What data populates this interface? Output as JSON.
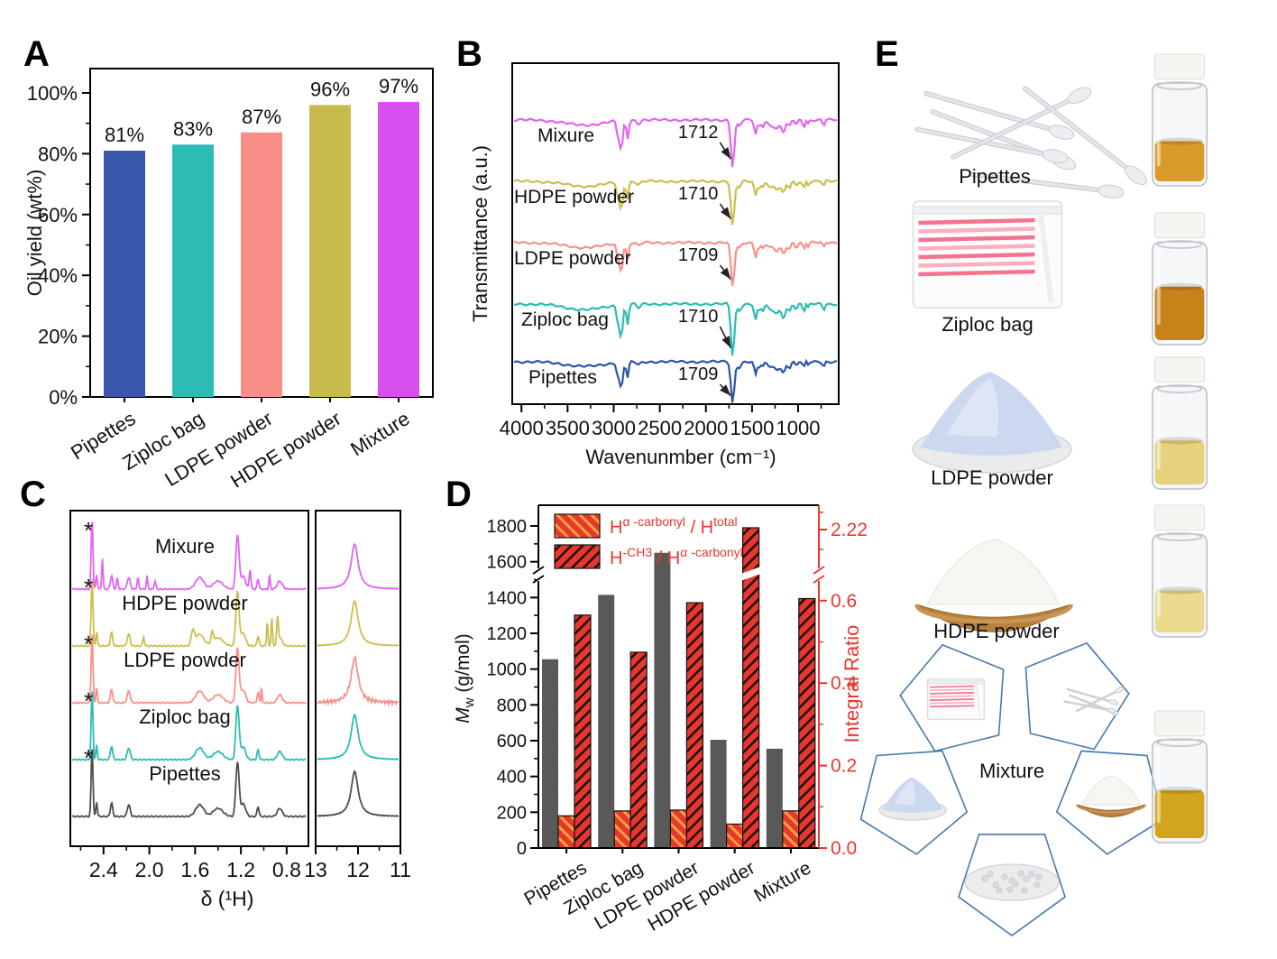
{
  "panels": {
    "a": "A",
    "b": "B",
    "c": "C",
    "d": "D",
    "e": "E"
  },
  "chart_data": [
    {
      "id": "A",
      "type": "bar",
      "ylabel": "Oil yield (wt%)",
      "categories": [
        "Pipettes",
        "Ziploc bag",
        "LDPE powder",
        "HDPE powder",
        "Mixture"
      ],
      "values": [
        81,
        83,
        87,
        96,
        97
      ],
      "value_labels": [
        "81%",
        "83%",
        "87%",
        "96%",
        "97%"
      ],
      "bar_colors": [
        "#3a57ae",
        "#2cbcb4",
        "#f98f88",
        "#c9bb4b",
        "#d84ff0"
      ],
      "yticks": [
        0,
        20,
        40,
        60,
        80,
        100
      ],
      "ytick_labels": [
        "0%",
        "20%",
        "40%",
        "60%",
        "80%",
        "100%"
      ],
      "ylim": [
        0,
        108
      ],
      "grid": false
    },
    {
      "id": "B",
      "type": "line-spectra",
      "xlabel": "Wavenunmber (cm⁻¹)",
      "ylabel": "Transmittance (a.u.)",
      "xticks": [
        4000,
        3500,
        3000,
        2500,
        2000,
        1500,
        1000
      ],
      "xlim": [
        4100,
        560
      ],
      "x_axis_reversed": true,
      "annotation_peak_wavenumber": 1710,
      "series": [
        {
          "name": "Mixure",
          "color": "#e164f2",
          "annotation": "1712",
          "depth_scale": 0.95
        },
        {
          "name": "HDPE powder",
          "color": "#ccbe4e",
          "annotation": "1710",
          "depth_scale": 0.92
        },
        {
          "name": "LDPE powder",
          "color": "#f9908a",
          "annotation": "1709",
          "depth_scale": 0.9
        },
        {
          "name": "Ziploc bag",
          "color": "#2cbcb4",
          "annotation": "1710",
          "depth_scale": 1.05
        },
        {
          "name": "Pipettes",
          "color": "#2c55a8",
          "annotation": "1709",
          "depth_scale": 0.85
        }
      ],
      "shared_absorption_bands": [
        [
          3320,
          6,
          290
        ],
        [
          2955,
          16,
          20
        ],
        [
          2918,
          34,
          24
        ],
        [
          2850,
          21,
          18
        ],
        [
          2730,
          4,
          28
        ],
        [
          1710,
          55,
          26
        ],
        [
          1640,
          7,
          30
        ],
        [
          1460,
          17,
          22
        ],
        [
          1412,
          9,
          14
        ],
        [
          1376,
          8,
          12
        ],
        [
          1300,
          6,
          45
        ],
        [
          1230,
          10,
          38
        ],
        [
          1158,
          14,
          30
        ],
        [
          1096,
          8,
          20
        ],
        [
          1020,
          6,
          18
        ],
        [
          938,
          8,
          16
        ],
        [
          888,
          5,
          12
        ],
        [
          724,
          7,
          14
        ]
      ]
    },
    {
      "id": "C",
      "type": "nmr-spectra",
      "xlabel": "δ (¹H)",
      "solvent_marker": "*",
      "left_xticks": [
        "2.4",
        "2.0",
        "1.6",
        "1.2",
        "0.8"
      ],
      "left_xlim": [
        2.69,
        0.61
      ],
      "right_xticks": [
        "13",
        "12",
        "11"
      ],
      "right_xlim": [
        13,
        11
      ],
      "series": [
        {
          "name": "Mixure",
          "color": "#e164f2",
          "right_noise": 0.5,
          "extra_peaks": [
            [
              2.41,
              34,
              0.008
            ],
            [
              2.28,
              12,
              0.01
            ],
            [
              2.1,
              13,
              0.009
            ],
            [
              2.02,
              15,
              0.008
            ],
            [
              1.95,
              9,
              0.01
            ],
            [
              1.12,
              22,
              0.01
            ],
            [
              0.95,
              16,
              0.008
            ]
          ]
        },
        {
          "name": "HDPE powder",
          "color": "#ccbe4e",
          "right_noise": 0.5,
          "extra_peaks": [
            [
              2.05,
              10,
              0.01
            ],
            [
              1.62,
              16,
              0.02
            ],
            [
              1.45,
              12,
              0.015
            ],
            [
              0.97,
              28,
              0.008
            ],
            [
              0.93,
              32,
              0.008
            ],
            [
              0.88,
              28,
              0.01
            ]
          ]
        },
        {
          "name": "LDPE powder",
          "color": "#f9908a",
          "right_noise": 2.4,
          "extra_peaks": [
            [
              1.02,
              20,
              0.006
            ]
          ]
        },
        {
          "name": "Ziploc bag",
          "color": "#2cbcb4",
          "right_noise": 0.5,
          "extra_peaks": []
        },
        {
          "name": "Pipettes",
          "color": "#4d4d4d",
          "right_noise": 0.5,
          "extra_peaks": []
        }
      ],
      "shared_peaks": [
        [
          2.5,
          78,
          0.011
        ],
        [
          2.46,
          16,
          0.009
        ],
        [
          2.33,
          15,
          0.014
        ],
        [
          2.18,
          13,
          0.018
        ],
        [
          1.56,
          13,
          0.05
        ],
        [
          1.4,
          9,
          0.06
        ],
        [
          1.23,
          60,
          0.02
        ],
        [
          1.18,
          14,
          0.03
        ],
        [
          1.05,
          11,
          0.012
        ],
        [
          0.86,
          9,
          0.03
        ]
      ],
      "right_peak": [
        12.08,
        50,
        0.1
      ]
    },
    {
      "id": "D",
      "type": "grouped-bar-dual-axis",
      "categories": [
        "Pipettes",
        "Ziploc bag",
        "LDPE powder",
        "HDPE powder",
        "Mixture"
      ],
      "left_axis": {
        "label_italic": "M",
        "label_sub": "w",
        "label_rest": " (g/mol)",
        "ticks": [
          0,
          200,
          400,
          600,
          800,
          1000,
          1200,
          1400,
          1600,
          1800
        ]
      },
      "right_axis": {
        "label": "Integral Ratio",
        "ticks": [
          "0.0",
          "0.2",
          "0.4",
          "0.6"
        ],
        "tick_values": [
          0,
          0.2,
          0.4,
          0.6
        ],
        "top_label": "2.22",
        "top_value": 2.22,
        "color": "#e8372f",
        "axis_break": true
      },
      "mw_series": {
        "values": [
          1055,
          1415,
          1650,
          605,
          555
        ],
        "color": "#595959"
      },
      "series": [
        {
          "name_parts": [
            [
              "H",
              false
            ],
            [
              "α -carbonyl",
              true
            ],
            [
              " / H",
              false
            ],
            [
              "total",
              true
            ]
          ],
          "values": [
            0.078,
            0.09,
            0.092,
            0.058,
            0.09
          ],
          "style": "orange-hatch"
        },
        {
          "name_parts": [
            [
              "H",
              false
            ],
            [
              "-CH3",
              true
            ],
            [
              " / H",
              false
            ],
            [
              "α -carbonyl",
              true
            ]
          ],
          "values": [
            0.565,
            0.475,
            0.595,
            2.22,
            0.605
          ],
          "style": "dark-hatch"
        }
      ],
      "bar_red": "#e8372f",
      "hatch_orange": "#f2a33c"
    }
  ],
  "panel_e": {
    "rows": [
      {
        "label": "Pipettes",
        "illustration": "pipettes",
        "vial_color": "#d89a28",
        "vial_fill": 0.42
      },
      {
        "label": "Ziploc bag",
        "illustration": "ziploc-bag",
        "vial_color": "#c8821a",
        "vial_fill": 0.56
      },
      {
        "label": "LDPE powder",
        "illustration": "ldpe-powder",
        "vial_color": "#e6d17c",
        "vial_fill": 0.46
      },
      {
        "label": "HDPE powder",
        "illustration": "hdpe-powder",
        "vial_color": "#e9da8e",
        "vial_fill": 0.44
      },
      {
        "label": "Mixture",
        "illustration": "mixture-pentagons",
        "vial_color": "#d2a51f",
        "vial_fill": 0.5
      }
    ]
  }
}
